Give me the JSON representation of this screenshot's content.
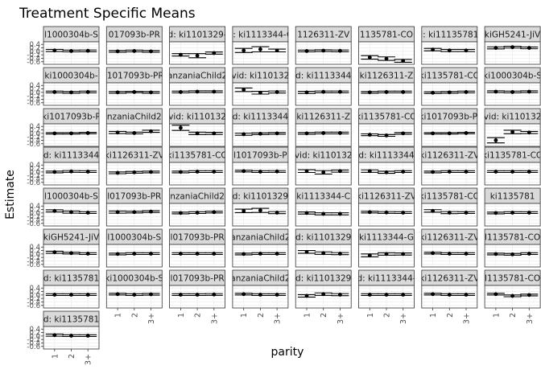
{
  "chart_data": {
    "type": "scatter",
    "title": "Treatment Specific Means",
    "xlabel": "parity",
    "ylabel": "Estimate",
    "x_categories": [
      "1",
      "2",
      "3+"
    ],
    "y_ticks": [
      "0.4",
      "0.2",
      "0.0",
      "-0.2",
      "-0.4",
      "-0.6"
    ],
    "ylim": [
      -0.75,
      0.55
    ],
    "error_bars": true,
    "grid": true,
    "colors": {
      "panel_bg": "#ffffff",
      "grid": "#ebebeb",
      "strip_bg": "#d9d9d9",
      "border": "#333333",
      "point": "#000000"
    },
    "panels": [
      {
        "strip": "l1000304b-S",
        "values": [
          0.05,
          0.02,
          0.03
        ],
        "errors": [
          0.06,
          0.05,
          0.05
        ]
      },
      {
        "strip": "017093b-PR",
        "values": [
          0.0,
          0.02,
          0.0
        ],
        "errors": [
          0.05,
          0.05,
          0.05
        ]
      },
      {
        "strip": "d: ki1101329-",
        "values": [
          -0.2,
          -0.25,
          -0.1
        ],
        "errors": [
          0.07,
          0.12,
          0.06
        ]
      },
      {
        "strip": "d: ki1113344-G",
        "values": [
          0.05,
          0.12,
          0.05
        ],
        "errors": [
          0.12,
          0.15,
          0.08
        ]
      },
      {
        "strip": "1126311-ZV",
        "values": [
          0.02,
          0.04,
          0.03
        ],
        "errors": [
          0.05,
          0.05,
          0.05
        ]
      },
      {
        "strip": "1135781-CO",
        "values": [
          -0.35,
          -0.42,
          -0.55
        ],
        "errors": [
          0.1,
          0.1,
          0.08
        ]
      },
      {
        "strip": "d: ki11135781-",
        "values": [
          0.1,
          0.05,
          0.05
        ],
        "errors": [
          0.07,
          0.06,
          0.06
        ]
      },
      {
        "strip": "kiGH5241-JiV",
        "values": [
          0.2,
          0.24,
          0.2
        ],
        "errors": [
          0.06,
          0.05,
          0.05
        ]
      },
      {
        "strip": "ki1000304b-",
        "values": [
          0.02,
          0.0,
          0.02
        ],
        "errors": [
          0.05,
          0.05,
          0.05
        ]
      },
      {
        "strip": "l1017093b-PR",
        "values": [
          0.0,
          0.02,
          0.0
        ],
        "errors": [
          0.05,
          0.04,
          0.05
        ]
      },
      {
        "strip": "anzaniaChild2",
        "values": [
          0.02,
          0.04,
          0.04
        ],
        "errors": [
          0.05,
          0.05,
          0.05
        ]
      },
      {
        "strip": "vid: ki110132",
        "values": [
          0.15,
          -0.02,
          0.02
        ],
        "errors": [
          0.1,
          0.08,
          0.06
        ]
      },
      {
        "strip": "d: ki1113344",
        "values": [
          0.0,
          0.03,
          0.03
        ],
        "errors": [
          0.06,
          0.05,
          0.05
        ]
      },
      {
        "strip": "ki1126311-Z",
        "values": [
          0.0,
          0.02,
          0.02
        ],
        "errors": [
          0.05,
          0.05,
          0.05
        ]
      },
      {
        "strip": "ki1135781-CO",
        "values": [
          -0.02,
          0.0,
          0.02
        ],
        "errors": [
          0.05,
          0.05,
          0.05
        ]
      },
      {
        "strip": "ki1000304b-S",
        "values": [
          0.04,
          0.02,
          0.04
        ],
        "errors": [
          0.05,
          0.05,
          0.05
        ]
      },
      {
        "strip": "ki1017093b-P",
        "values": [
          0.0,
          0.0,
          0.02
        ],
        "errors": [
          0.04,
          0.04,
          0.04
        ]
      },
      {
        "strip": "nzaniaChild2",
        "values": [
          0.05,
          0.02,
          0.12
        ],
        "errors": [
          0.06,
          0.05,
          0.06
        ]
      },
      {
        "strip": "vid: ki110132",
        "values": [
          0.32,
          0.0,
          0.0
        ],
        "errors": [
          0.15,
          0.07,
          0.06
        ]
      },
      {
        "strip": "d: ki1113344",
        "values": [
          -0.05,
          -0.02,
          0.0
        ],
        "errors": [
          0.06,
          0.05,
          0.05
        ]
      },
      {
        "strip": "ki1126311-Z",
        "values": [
          0.0,
          0.02,
          0.02
        ],
        "errors": [
          0.05,
          0.05,
          0.05
        ]
      },
      {
        "strip": "ki1135781-CO",
        "values": [
          -0.08,
          -0.12,
          0.0
        ],
        "errors": [
          0.05,
          0.05,
          0.05
        ]
      },
      {
        "strip": "ki1017093b-PI",
        "values": [
          0.0,
          0.0,
          0.02
        ],
        "errors": [
          0.04,
          0.04,
          0.04
        ]
      },
      {
        "strip": "vid: ki110132",
        "values": [
          -0.4,
          0.08,
          0.05
        ],
        "errors": [
          0.15,
          0.1,
          0.06
        ]
      },
      {
        "strip": "d: ki1113344",
        "values": [
          0.0,
          0.03,
          0.02
        ],
        "errors": [
          0.05,
          0.05,
          0.05
        ]
      },
      {
        "strip": "ki1126311-ZV",
        "values": [
          -0.05,
          -0.02,
          0.0
        ],
        "errors": [
          0.05,
          0.05,
          0.05
        ]
      },
      {
        "strip": "ki1135781-CO",
        "values": [
          0.0,
          0.02,
          0.02
        ],
        "errors": [
          0.05,
          0.05,
          0.05
        ]
      },
      {
        "strip": "l1017093b-P",
        "values": [
          0.05,
          0.02,
          0.03
        ],
        "errors": [
          0.05,
          0.05,
          0.05
        ]
      },
      {
        "strip": "vid: ki110132",
        "values": [
          0.05,
          -0.02,
          0.05
        ],
        "errors": [
          0.08,
          0.1,
          0.06
        ]
      },
      {
        "strip": "d: ki1113344",
        "values": [
          0.05,
          -0.02,
          0.02
        ],
        "errors": [
          0.07,
          0.06,
          0.05
        ]
      },
      {
        "strip": "ki1126311-ZV",
        "values": [
          0.0,
          0.02,
          0.02
        ],
        "errors": [
          0.05,
          0.05,
          0.05
        ]
      },
      {
        "strip": "ki1135781-CO",
        "values": [
          0.02,
          0.02,
          0.02
        ],
        "errors": [
          0.05,
          0.05,
          0.05
        ]
      },
      {
        "strip": "l1000304b-S",
        "values": [
          0.12,
          0.05,
          0.02
        ],
        "errors": [
          0.06,
          0.06,
          0.05
        ]
      },
      {
        "strip": "l017093b-PR",
        "values": [
          0.05,
          0.05,
          0.08
        ],
        "errors": [
          0.06,
          0.05,
          0.05
        ]
      },
      {
        "strip": "nzaniaChild2",
        "values": [
          0.0,
          0.02,
          0.05
        ],
        "errors": [
          0.05,
          0.05,
          0.05
        ]
      },
      {
        "strip": "d: ki1101329",
        "values": [
          0.12,
          0.15,
          0.02
        ],
        "errors": [
          0.1,
          0.12,
          0.06
        ]
      },
      {
        "strip": "ki1113344-C",
        "values": [
          0.0,
          -0.05,
          -0.05
        ],
        "errors": [
          0.06,
          0.06,
          0.06
        ]
      },
      {
        "strip": "ki1126311-ZV",
        "values": [
          0.05,
          0.03,
          0.02
        ],
        "errors": [
          0.05,
          0.05,
          0.05
        ]
      },
      {
        "strip": "ki1135781-CO",
        "values": [
          0.12,
          0.02,
          0.02
        ],
        "errors": [
          0.07,
          0.06,
          0.05
        ]
      },
      {
        "strip": "ki1135781",
        "values": [
          0.0,
          0.02,
          0.02
        ],
        "errors": [
          0.05,
          0.05,
          0.05
        ]
      },
      {
        "strip": "kiGH5241-JiV",
        "values": [
          0.1,
          0.05,
          0.02
        ],
        "errors": [
          0.06,
          0.05,
          0.05
        ]
      },
      {
        "strip": "l1000304b-S",
        "values": [
          0.0,
          0.02,
          0.02
        ],
        "errors": [
          0.05,
          0.05,
          0.05
        ]
      },
      {
        "strip": "l017093b-PR",
        "values": [
          0.02,
          0.02,
          0.02
        ],
        "errors": [
          0.05,
          0.05,
          0.05
        ]
      },
      {
        "strip": "anzaniaChild2",
        "values": [
          0.0,
          0.02,
          0.02
        ],
        "errors": [
          0.05,
          0.05,
          0.05
        ]
      },
      {
        "strip": "d: ki1101329",
        "values": [
          0.12,
          0.05,
          0.02
        ],
        "errors": [
          0.08,
          0.07,
          0.06
        ]
      },
      {
        "strip": "ki1113344-G",
        "values": [
          -0.08,
          0.0,
          0.0
        ],
        "errors": [
          0.08,
          0.07,
          0.06
        ]
      },
      {
        "strip": "ki1126311-ZV",
        "values": [
          0.05,
          0.02,
          0.02
        ],
        "errors": [
          0.05,
          0.05,
          0.05
        ]
      },
      {
        "strip": "l1135781-CO",
        "values": [
          0.0,
          -0.02,
          0.02
        ],
        "errors": [
          0.05,
          0.05,
          0.05
        ]
      },
      {
        "strip": "d: ki1135781",
        "values": [
          0.02,
          0.02,
          0.02
        ],
        "errors": [
          0.05,
          0.05,
          0.05
        ]
      },
      {
        "strip": "ki1000304b-S",
        "values": [
          0.05,
          0.02,
          0.04
        ],
        "errors": [
          0.05,
          0.05,
          0.05
        ]
      },
      {
        "strip": "l017093b-PR",
        "values": [
          0.02,
          0.02,
          0.03
        ],
        "errors": [
          0.05,
          0.05,
          0.05
        ]
      },
      {
        "strip": "anzaniaChild2",
        "values": [
          0.05,
          0.02,
          0.02
        ],
        "errors": [
          0.05,
          0.05,
          0.05
        ]
      },
      {
        "strip": "d: ki1101329",
        "values": [
          -0.05,
          0.05,
          0.02
        ],
        "errors": [
          0.07,
          0.07,
          0.06
        ]
      },
      {
        "strip": "d: ki1113344-",
        "values": [
          0.02,
          0.02,
          0.02
        ],
        "errors": [
          0.05,
          0.05,
          0.05
        ]
      },
      {
        "strip": "ki1126311-ZV",
        "values": [
          0.05,
          0.02,
          0.02
        ],
        "errors": [
          0.05,
          0.05,
          0.05
        ]
      },
      {
        "strip": "l1135781-CO",
        "values": [
          0.05,
          -0.05,
          0.0
        ],
        "errors": [
          0.05,
          0.05,
          0.05
        ]
      },
      {
        "strip": "d: ki1135781",
        "values": [
          0.05,
          0.02,
          0.02
        ],
        "errors": [
          0.06,
          0.05,
          0.05
        ]
      }
    ]
  }
}
